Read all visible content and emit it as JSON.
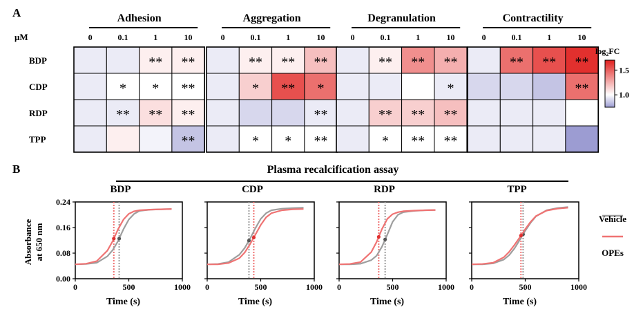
{
  "panel_a": {
    "label": "A",
    "unit_label": "μM",
    "concentrations": [
      "0",
      "0.1",
      "1",
      "10"
    ],
    "groups": [
      "Adhesion",
      "Aggregation",
      "Degranulation",
      "Contractility"
    ],
    "rows": [
      "BDP",
      "CDP",
      "RDP",
      "TPP"
    ],
    "colorbar": {
      "title_main": "log",
      "title_sub": "2",
      "title_tail": "FC",
      "ticks": [
        "1.5",
        "1.0"
      ],
      "min": 0.75,
      "max": 1.7,
      "low_color": "#9c9cd2",
      "mid_color": "#ffffff",
      "high_color": "#e0201e"
    }
  },
  "panel_b": {
    "label": "B",
    "title": "Plasma recalcification assay",
    "ylabel_line1": "Absorbance",
    "ylabel_line2": "at 650 nm",
    "xlabel": "Time (s)",
    "yticks": [
      "0.24",
      "0.16",
      "0.08",
      "0.00"
    ],
    "xticks": [
      "0",
      "500",
      "1000"
    ],
    "legend": [
      {
        "label": "Vehicle",
        "color": "#9e9e9e"
      },
      {
        "label": "OPEs",
        "color": "#ef7373"
      }
    ]
  },
  "chart_data": [
    {
      "type": "heatmap",
      "rows": [
        "BDP",
        "CDP",
        "RDP",
        "TPP"
      ],
      "groups": [
        "Adhesion",
        "Aggregation",
        "Degranulation",
        "Contractility"
      ],
      "columns": [
        "0",
        "0.1",
        "1",
        "10"
      ],
      "values": [
        [
          0.95,
          0.95,
          1.05,
          1.05,
          0.95,
          1.05,
          1.05,
          1.2,
          0.95,
          1.05,
          1.35,
          1.25,
          0.95,
          1.45,
          1.55,
          1.65
        ],
        [
          0.95,
          1.0,
          1.0,
          1.0,
          0.95,
          1.15,
          1.55,
          1.45,
          0.95,
          0.95,
          1.0,
          0.95,
          0.9,
          0.9,
          0.85,
          1.45
        ],
        [
          0.95,
          0.95,
          1.1,
          1.05,
          0.95,
          0.9,
          0.9,
          0.95,
          0.95,
          1.15,
          1.15,
          1.2,
          0.95,
          0.95,
          0.95,
          1.0
        ],
        [
          0.95,
          1.05,
          0.97,
          0.85,
          0.95,
          1.0,
          1.0,
          1.0,
          0.95,
          1.0,
          1.0,
          1.0,
          0.95,
          0.95,
          0.95,
          0.75
        ]
      ],
      "significance": [
        [
          "",
          "",
          "**",
          "**",
          "",
          "**",
          "**",
          "**",
          "",
          "**",
          "**",
          "**",
          "",
          "**",
          "**",
          "**"
        ],
        [
          "",
          "*",
          "*",
          "**",
          "",
          "*",
          "**",
          "*",
          "",
          "",
          "",
          "*",
          "",
          "",
          "",
          "**"
        ],
        [
          "",
          "**",
          "**",
          "**",
          "",
          "",
          "",
          "**",
          "",
          "**",
          "**",
          "**",
          "",
          "",
          "",
          ""
        ],
        [
          "",
          "",
          "",
          "**",
          "",
          "*",
          "*",
          "**",
          "",
          "*",
          "**",
          "**",
          "",
          "",
          "",
          ""
        ]
      ],
      "legend_title": "log2FC",
      "colorbar_ticks": [
        1.0,
        1.5
      ]
    },
    {
      "type": "line",
      "title": "Plasma recalcification assay",
      "panels": [
        {
          "name": "BDP",
          "xlim": [
            0,
            1000
          ],
          "ylim": [
            0,
            0.24
          ],
          "xlabel": "Time (s)",
          "ylabel": "Absorbance at 650 nm",
          "series": [
            {
              "name": "Vehicle",
              "x": [
                0,
                100,
                200,
                300,
                350,
                400,
                450,
                500,
                550,
                600,
                700,
                800,
                900
              ],
              "y": [
                0.045,
                0.046,
                0.05,
                0.07,
                0.09,
                0.118,
                0.155,
                0.185,
                0.203,
                0.212,
                0.216,
                0.217,
                0.218
              ],
              "midpoint": 410
            },
            {
              "name": "OPEs",
              "x": [
                0,
                100,
                200,
                300,
                350,
                400,
                450,
                500,
                550,
                600,
                700,
                800,
                900
              ],
              "y": [
                0.045,
                0.047,
                0.055,
                0.088,
                0.118,
                0.155,
                0.185,
                0.203,
                0.211,
                0.214,
                0.216,
                0.217,
                0.218
              ],
              "midpoint": 360
            }
          ]
        },
        {
          "name": "CDP",
          "xlim": [
            0,
            1000
          ],
          "ylim": [
            0,
            0.24
          ],
          "xlabel": "Time (s)",
          "ylabel": "Absorbance at 650 nm",
          "series": [
            {
              "name": "Vehicle",
              "x": [
                0,
                100,
                200,
                300,
                350,
                400,
                450,
                500,
                550,
                600,
                700,
                800,
                900
              ],
              "y": [
                0.045,
                0.046,
                0.052,
                0.075,
                0.096,
                0.125,
                0.158,
                0.187,
                0.205,
                0.214,
                0.219,
                0.221,
                0.222
              ],
              "midpoint": 390
            },
            {
              "name": "OPEs",
              "x": [
                0,
                100,
                200,
                300,
                350,
                400,
                450,
                500,
                550,
                600,
                700,
                800,
                900
              ],
              "y": [
                0.045,
                0.045,
                0.049,
                0.064,
                0.082,
                0.108,
                0.138,
                0.168,
                0.192,
                0.205,
                0.214,
                0.217,
                0.218
              ],
              "midpoint": 435
            }
          ]
        },
        {
          "name": "RDP",
          "xlim": [
            0,
            1000
          ],
          "ylim": [
            0,
            0.24
          ],
          "xlabel": "Time (s)",
          "ylabel": "Absorbance at 650 nm",
          "series": [
            {
              "name": "Vehicle",
              "x": [
                0,
                100,
                200,
                300,
                350,
                400,
                450,
                500,
                550,
                600,
                700,
                800,
                900
              ],
              "y": [
                0.045,
                0.045,
                0.047,
                0.058,
                0.072,
                0.1,
                0.138,
                0.178,
                0.2,
                0.208,
                0.212,
                0.214,
                0.215
              ],
              "midpoint": 430
            },
            {
              "name": "OPEs",
              "x": [
                0,
                100,
                200,
                300,
                350,
                400,
                450,
                500,
                550,
                600,
                700,
                800,
                900
              ],
              "y": [
                0.045,
                0.046,
                0.052,
                0.083,
                0.115,
                0.155,
                0.187,
                0.202,
                0.208,
                0.211,
                0.213,
                0.214,
                0.215
              ],
              "midpoint": 370
            }
          ]
        },
        {
          "name": "TPP",
          "xlim": [
            0,
            1000
          ],
          "ylim": [
            0,
            0.24
          ],
          "xlabel": "Time (s)",
          "ylabel": "Absorbance at 650 nm",
          "series": [
            {
              "name": "Vehicle",
              "x": [
                0,
                100,
                200,
                300,
                350,
                400,
                450,
                500,
                550,
                600,
                700,
                800,
                900
              ],
              "y": [
                0.045,
                0.045,
                0.048,
                0.06,
                0.074,
                0.095,
                0.122,
                0.15,
                0.175,
                0.195,
                0.214,
                0.221,
                0.224
              ],
              "midpoint": 480
            },
            {
              "name": "OPEs",
              "x": [
                0,
                100,
                200,
                300,
                350,
                400,
                450,
                500,
                550,
                600,
                700,
                800,
                900
              ],
              "y": [
                0.045,
                0.046,
                0.05,
                0.067,
                0.084,
                0.106,
                0.13,
                0.155,
                0.178,
                0.196,
                0.213,
                0.219,
                0.222
              ],
              "midpoint": 460
            }
          ]
        }
      ]
    }
  ]
}
